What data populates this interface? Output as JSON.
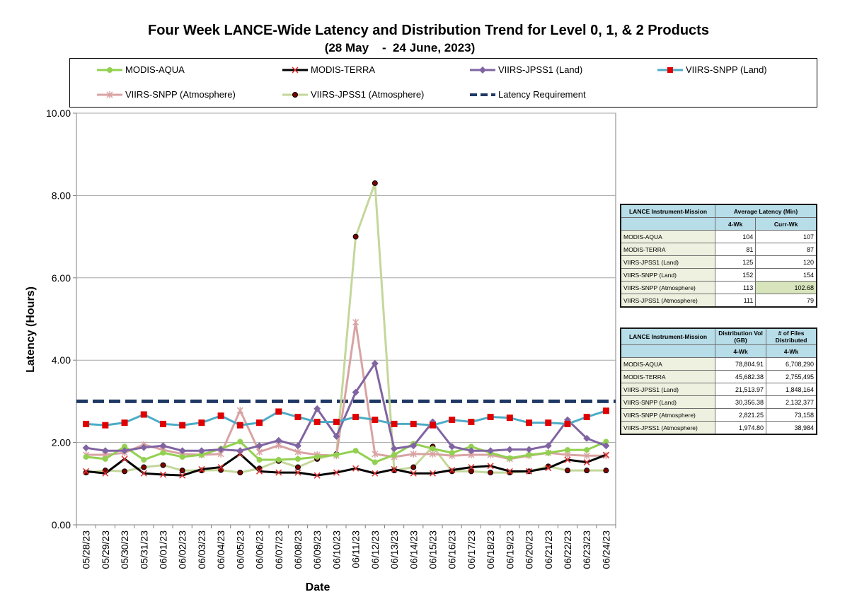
{
  "title": "Four Week LANCE-Wide Latency and Distribution Trend for Level 0, 1, & 2 Products",
  "subtitle": "(28 May    -  24 June, 2023)",
  "chart_data": {
    "type": "line",
    "xlabel": "Date",
    "ylabel": "Latency (Hours)",
    "ylim": [
      0,
      10
    ],
    "yticks": [
      "0.00",
      "2.00",
      "4.00",
      "6.00",
      "8.00",
      "10.00"
    ],
    "grid": true,
    "legend_position": "top",
    "categories": [
      "05/28/23",
      "05/29/23",
      "05/30/23",
      "05/31/23",
      "06/01/23",
      "06/02/23",
      "06/03/23",
      "06/04/23",
      "06/05/23",
      "06/06/23",
      "06/07/23",
      "06/08/23",
      "06/09/23",
      "06/10/23",
      "06/11/23",
      "06/12/23",
      "06/13/23",
      "06/14/23",
      "06/15/23",
      "06/16/23",
      "06/17/23",
      "06/18/23",
      "06/19/23",
      "06/20/23",
      "06/21/23",
      "06/22/23",
      "06/23/23",
      "06/24/23"
    ],
    "series": [
      {
        "name": "MODIS-AQUA",
        "color": "#92d050",
        "marker": "circle",
        "values": [
          1.65,
          1.6,
          1.9,
          1.58,
          1.75,
          1.65,
          1.7,
          1.85,
          2.02,
          1.58,
          1.58,
          1.6,
          1.65,
          1.7,
          1.8,
          1.52,
          1.7,
          1.97,
          1.85,
          1.75,
          1.9,
          1.75,
          1.62,
          1.7,
          1.75,
          1.82,
          1.82,
          2.02
        ]
      },
      {
        "name": "MODIS-TERRA",
        "color": "#000000",
        "marker": "x",
        "values": [
          1.3,
          1.25,
          1.6,
          1.25,
          1.22,
          1.2,
          1.35,
          1.4,
          1.72,
          1.3,
          1.27,
          1.27,
          1.2,
          1.27,
          1.37,
          1.25,
          1.35,
          1.25,
          1.25,
          1.33,
          1.4,
          1.43,
          1.3,
          1.3,
          1.38,
          1.58,
          1.52,
          1.7
        ]
      },
      {
        "name": "VIIRS-JPSS1 (Land)",
        "color": "#8064a2",
        "marker": "diamond",
        "values": [
          1.87,
          1.8,
          1.8,
          1.88,
          1.92,
          1.8,
          1.8,
          1.83,
          1.8,
          1.92,
          2.05,
          1.92,
          2.82,
          2.15,
          3.22,
          3.92,
          1.85,
          1.92,
          2.5,
          1.9,
          1.8,
          1.8,
          1.83,
          1.83,
          1.92,
          2.55,
          2.1,
          1.92
        ]
      },
      {
        "name": "VIIRS-SNPP (Land)",
        "color": "#4bacc6",
        "marker": "square",
        "values": [
          2.45,
          2.42,
          2.48,
          2.68,
          2.45,
          2.42,
          2.48,
          2.65,
          2.42,
          2.48,
          2.75,
          2.62,
          2.5,
          2.5,
          2.62,
          2.55,
          2.45,
          2.45,
          2.42,
          2.55,
          2.5,
          2.62,
          2.6,
          2.48,
          2.48,
          2.45,
          2.62,
          2.77
        ]
      },
      {
        "name": "VIIRS-SNPP (Atmosphere)",
        "color": "#d9a3a3",
        "marker": "star",
        "values": [
          1.7,
          1.7,
          1.75,
          1.95,
          1.82,
          1.72,
          1.7,
          1.72,
          2.78,
          1.77,
          1.93,
          1.77,
          1.7,
          1.68,
          4.92,
          1.72,
          1.65,
          1.72,
          1.72,
          1.68,
          1.7,
          1.7,
          1.6,
          1.68,
          1.75,
          1.7,
          1.68,
          1.68
        ]
      },
      {
        "name": "VIIRS-JPSS1 (Atmosphere)",
        "color": "#c4d79b",
        "marker": "dot",
        "values": [
          1.27,
          1.32,
          1.3,
          1.4,
          1.45,
          1.32,
          1.32,
          1.33,
          1.27,
          1.37,
          1.55,
          1.4,
          1.6,
          1.72,
          7.0,
          8.3,
          1.32,
          1.4,
          1.9,
          1.3,
          1.3,
          1.27,
          1.27,
          1.3,
          1.42,
          1.32,
          1.32,
          1.32
        ]
      },
      {
        "name": "Latency Requirement",
        "color": "#1f3864",
        "marker": "none",
        "dashed": true,
        "values": [
          3.0,
          3.0,
          3.0,
          3.0,
          3.0,
          3.0,
          3.0,
          3.0,
          3.0,
          3.0,
          3.0,
          3.0,
          3.0,
          3.0,
          3.0,
          3.0,
          3.0,
          3.0,
          3.0,
          3.0,
          3.0,
          3.0,
          3.0,
          3.0,
          3.0,
          3.0,
          3.0,
          3.0
        ]
      }
    ]
  },
  "latency_table": {
    "header_name": "LANCE Instrument-Mission",
    "header_value": "Average Latency (Min)",
    "sub_4wk": "4-Wk",
    "sub_curr": "Curr-Wk",
    "rows": [
      {
        "name": "MODIS-AQUA",
        "wk4": "104",
        "curr": "107"
      },
      {
        "name": "MODIS-TERRA",
        "wk4": "81",
        "curr": "87"
      },
      {
        "name": "VIIRS-JPSS1 (Land)",
        "wk4": "125",
        "curr": "120"
      },
      {
        "name": "VIIRS-SNPP (Land)",
        "wk4": "152",
        "curr": "154"
      },
      {
        "name": "VIIRS-SNPP (Atmosphere)",
        "wk4": "113",
        "curr": "102.68"
      },
      {
        "name": "VIIRS-JPSS1 (Atmosphere)",
        "wk4": "111",
        "curr": "79"
      }
    ]
  },
  "distribution_table": {
    "header_name": "LANCE Instrument-Mission",
    "header_vol": "Distribution Vol (GB)",
    "header_files": "# of Files Distributed",
    "sub_vol": "4-Wk",
    "sub_files": "4-Wk",
    "rows": [
      {
        "name": "MODIS-AQUA",
        "vol": "78,804.91",
        "files": "6,708,290"
      },
      {
        "name": "MODIS-TERRA",
        "vol": "45,682.38",
        "files": "2,755,495"
      },
      {
        "name": "VIIRS-JPSS1 (Land)",
        "vol": "21,513.97",
        "files": "1,848,164"
      },
      {
        "name": "VIIRS-SNPP (Land)",
        "vol": "30,356.38",
        "files": "2,132,377"
      },
      {
        "name": "VIIRS-SNPP (Atmosphere)",
        "vol": "2,821.25",
        "files": "73,158"
      },
      {
        "name": "VIIRS-JPSS1 (Atmosphere)",
        "vol": "1,974.80",
        "files": "38,984"
      }
    ]
  }
}
